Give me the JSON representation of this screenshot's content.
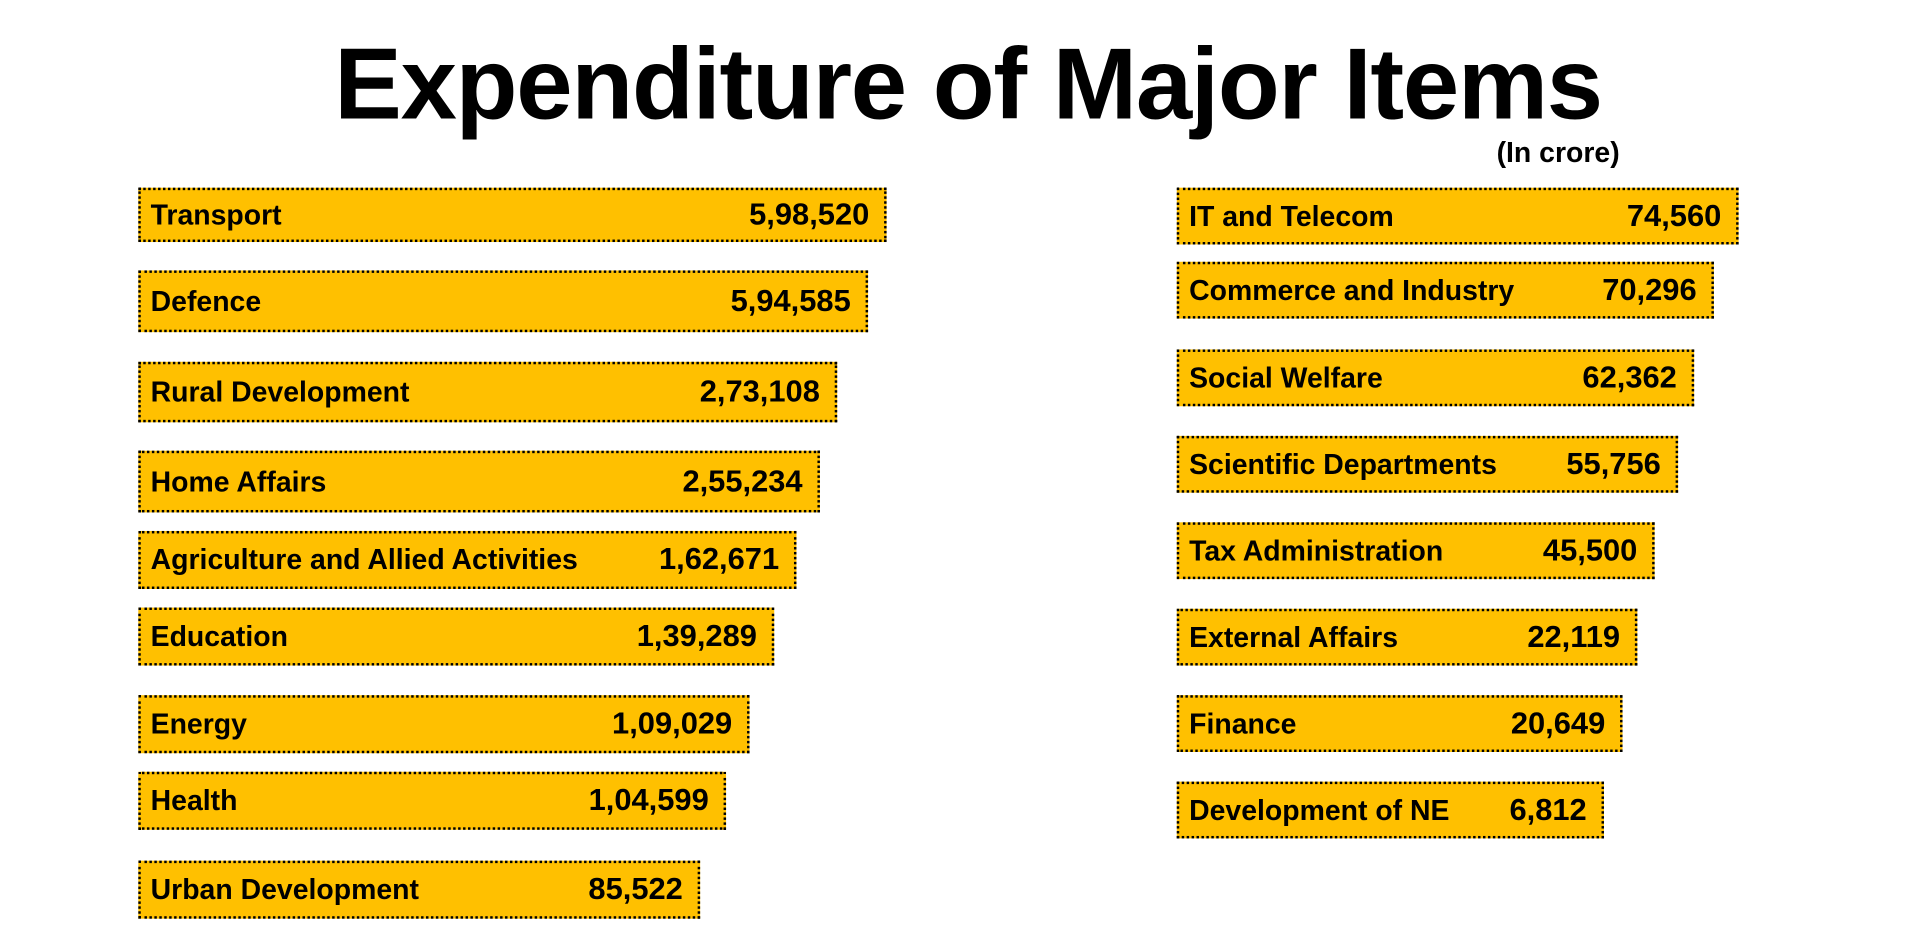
{
  "chart_data": {
    "type": "bar",
    "orientation": "horizontal",
    "title": "Expenditure of Major Items",
    "unit_note": "(In crore)",
    "bar_color": "#FFC000",
    "categories": [
      "Transport",
      "Defence",
      "Rural Development",
      "Home Affairs",
      "Agriculture and Allied Activities",
      "Education",
      "Energy",
      "Health",
      "Urban Development",
      "IT and Telecom",
      "Commerce and Industry",
      "Social Welfare",
      "Scientific Departments",
      "Tax Administration",
      "External Affairs",
      "Finance",
      "Development of NE"
    ],
    "values": [
      598520,
      594585,
      273108,
      255234,
      162671,
      139289,
      109029,
      104599,
      85522,
      74560,
      70296,
      62362,
      55756,
      45500,
      22119,
      20649,
      6812
    ],
    "value_labels": [
      "5,98,520",
      "5,94,585",
      "2,73,108",
      "2,55,234",
      "1,62,671",
      "1,39,289",
      "1,09,029",
      "1,04,599",
      "85,522",
      "74,560",
      "70,296",
      "62,362",
      "55,756",
      "45,500",
      "22,119",
      "20,649",
      "6,812"
    ]
  }
}
